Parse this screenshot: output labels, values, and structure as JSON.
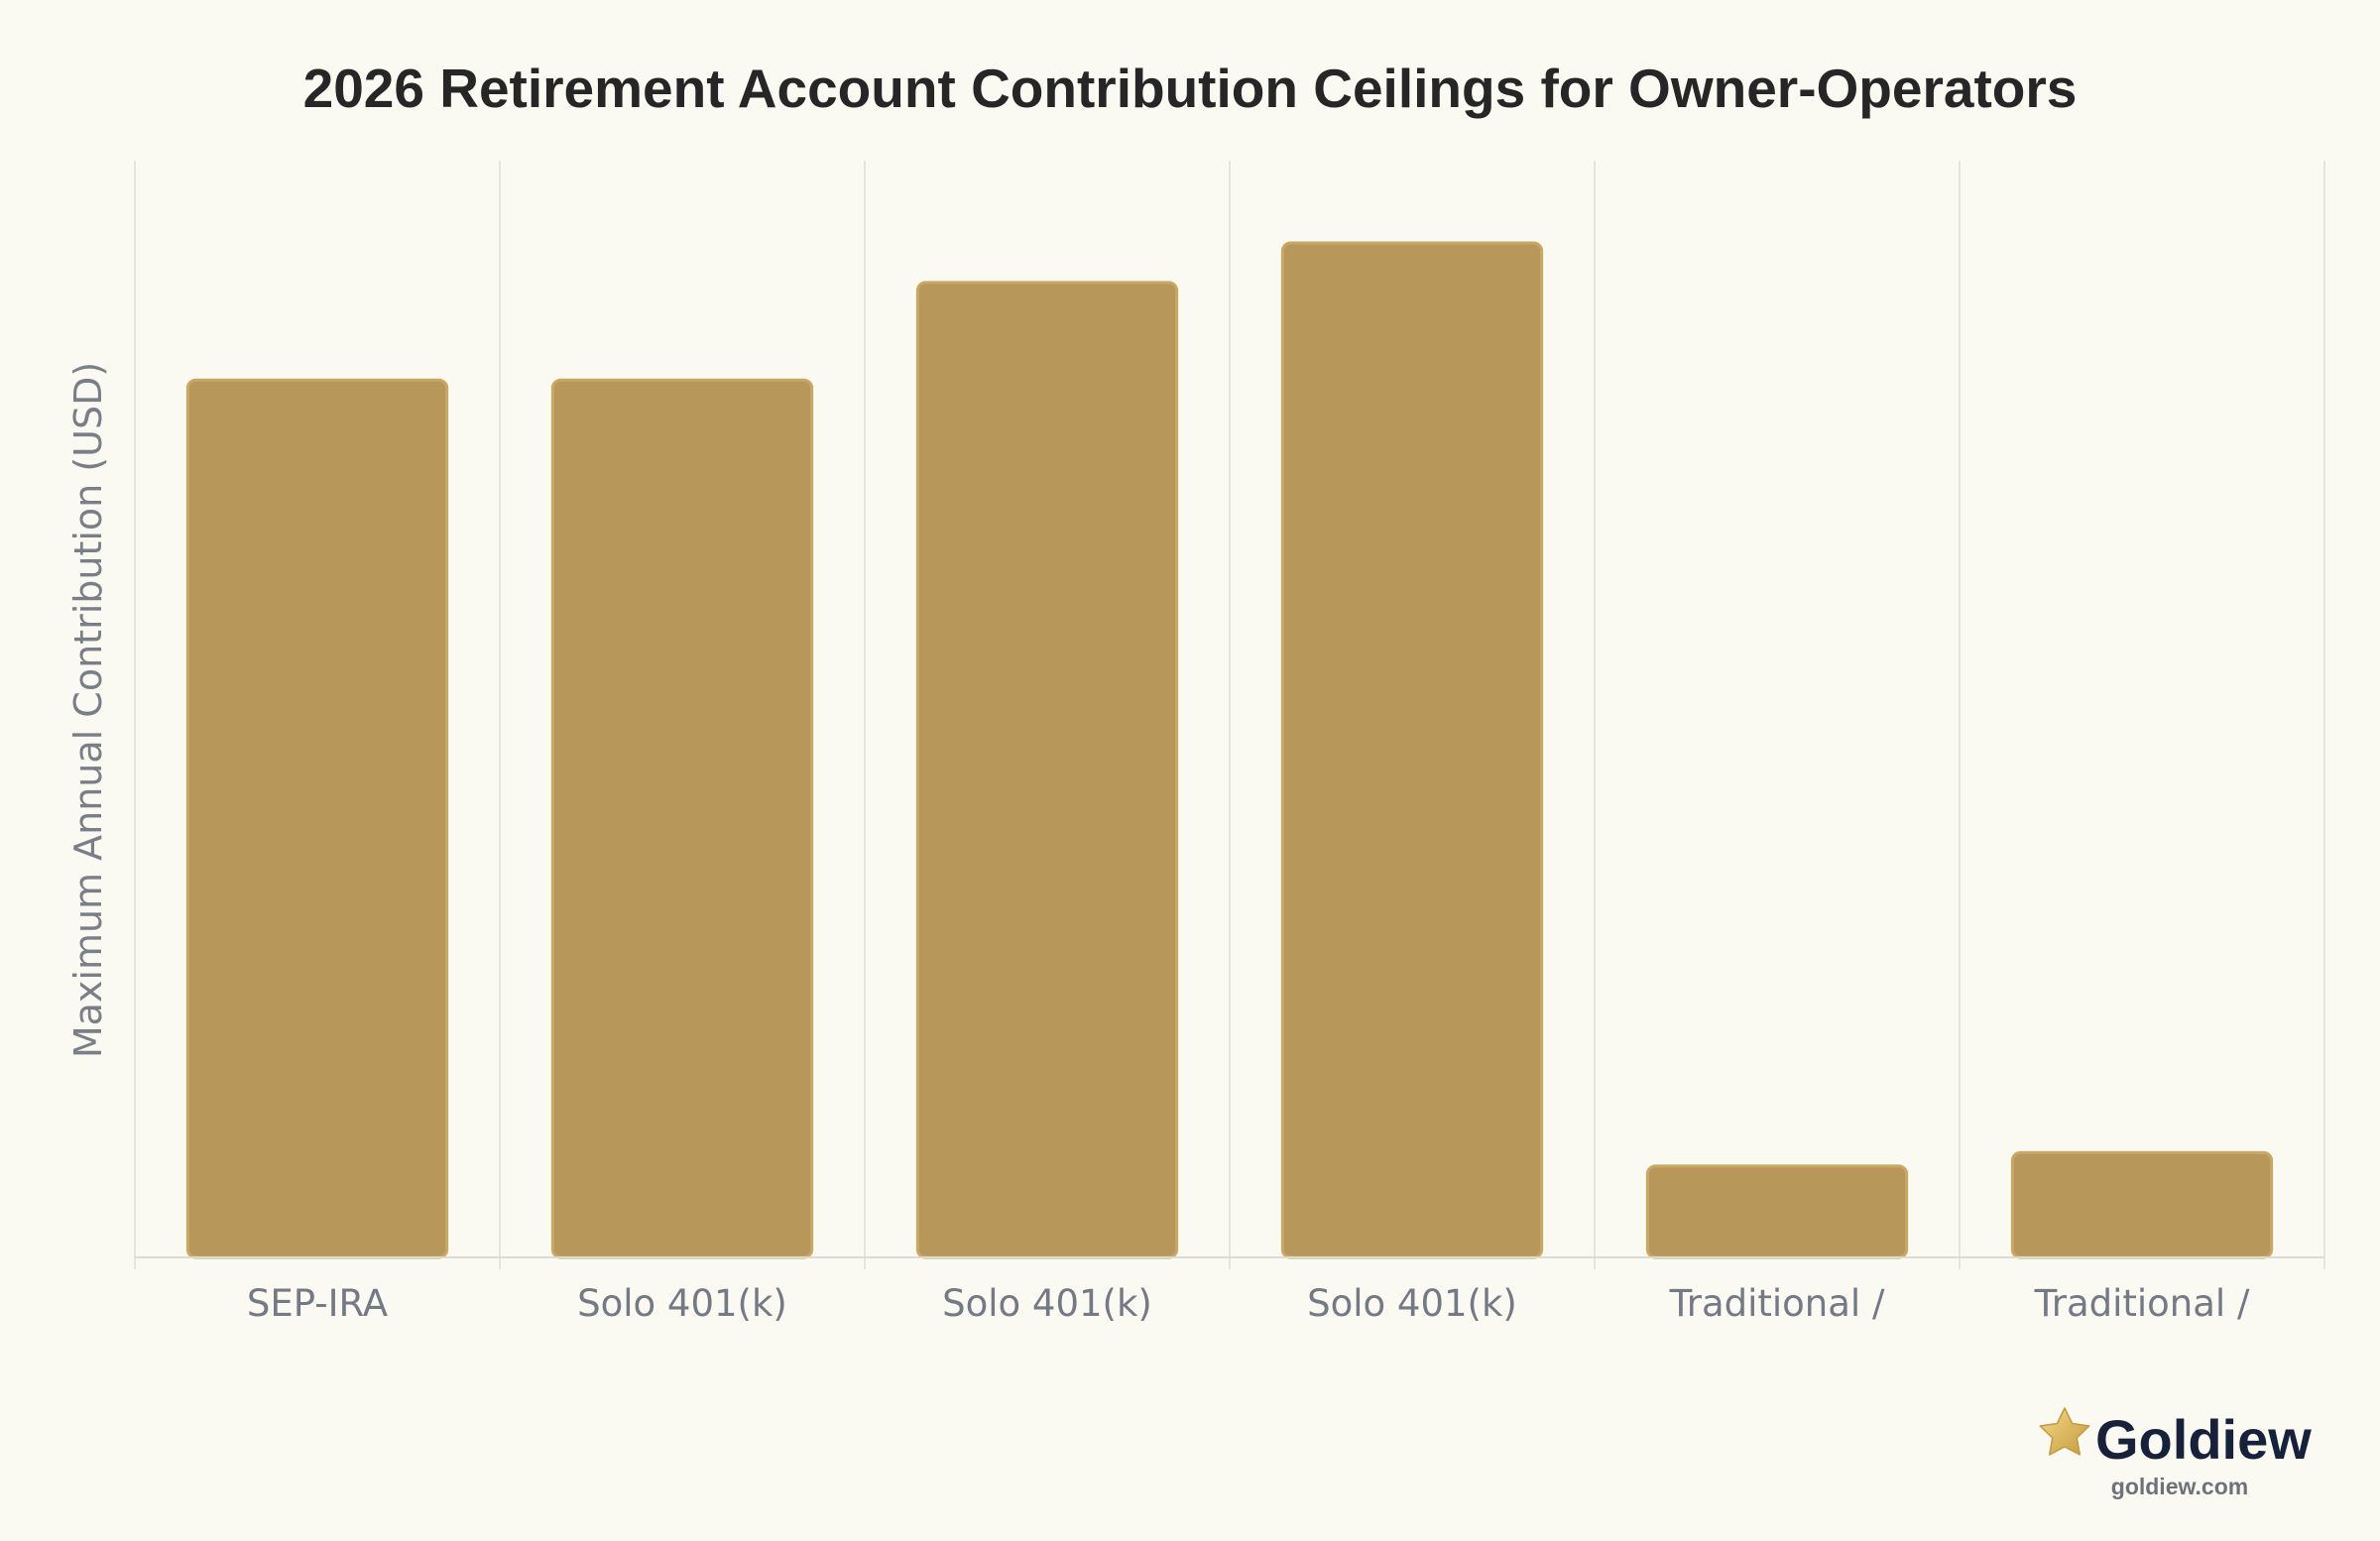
{
  "chart_data": {
    "type": "bar",
    "title": "2026 Retirement Account Contribution Ceilings for Owner-Operators",
    "xlabel": "",
    "ylabel": "Maximum Annual Contribution (USD)",
    "categories": [
      "SEP-IRA",
      "Solo 401(k)",
      "Solo 401(k)",
      "Solo 401(k)",
      "Traditional /",
      "Traditional /"
    ],
    "values": [
      72000,
      72000,
      80000,
      83250,
      7500,
      8600
    ],
    "ylim": [
      0,
      90000
    ],
    "grid": {
      "vertical": true,
      "horizontal": false
    },
    "bar_color": "#b8975b"
  },
  "brand": {
    "name": "Goldiew",
    "url": "goldiew.com",
    "icon": "star-icon",
    "icon_color": "#d9b45a"
  }
}
